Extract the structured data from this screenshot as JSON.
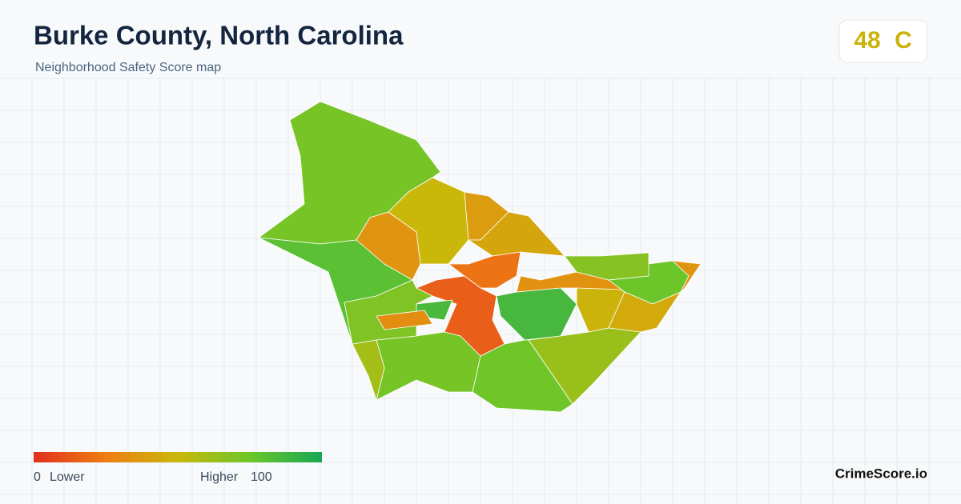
{
  "header": {
    "title": "Burke County, North Carolina",
    "subtitle": "Neighborhood Safety Score map"
  },
  "score": {
    "value": 48,
    "grade": "C"
  },
  "legend": {
    "min": 0,
    "min_label": "Lower",
    "max_label": "Higher",
    "max": 100,
    "colors": [
      "#e0301e",
      "#ef7d14",
      "#c9b80a",
      "#6cc62a",
      "#18a655"
    ]
  },
  "region_scores": [
    72,
    80,
    35,
    50,
    38,
    42,
    22,
    15,
    85,
    86,
    48,
    34,
    68,
    75,
    35,
    44,
    63,
    74,
    72,
    60,
    70,
    32
  ],
  "brand": "CrimeScore.io"
}
